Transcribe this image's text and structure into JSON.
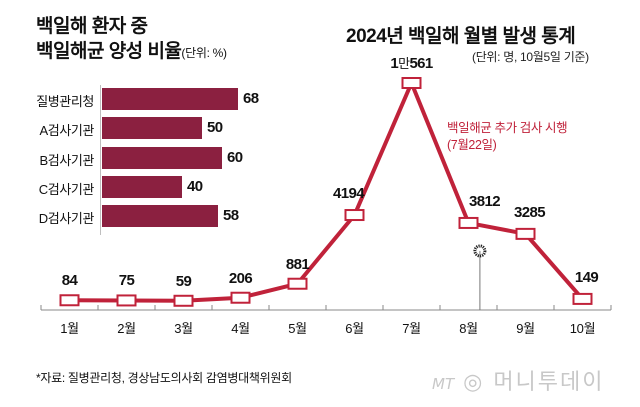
{
  "left_chart": {
    "title_line1": "백일해 환자 중",
    "title_line2": "백일해균 양성 비율",
    "unit": "(단위: %)"
  },
  "right_chart": {
    "title": "2024년 백일해 월별 발생 통계",
    "subtitle": "(단위: 명, 10월5일 기준)",
    "annotation_line1": "백일해균 추가 검사 시행",
    "annotation_line2": "(7월22일)"
  },
  "chart_data": [
    {
      "type": "bar",
      "orientation": "horizontal",
      "title": "백일해 환자 중 백일해균 양성 비율",
      "unit": "%",
      "categories": [
        "질병관리청",
        "A검사기관",
        "B검사기관",
        "C검사기관",
        "D검사기관"
      ],
      "values": [
        68,
        50,
        60,
        40,
        58
      ],
      "value_labels": [
        "68",
        "50",
        "60",
        "40",
        "58"
      ],
      "xlim": [
        0,
        100
      ],
      "color": "#8b2040",
      "grid": false
    },
    {
      "type": "line",
      "title": "2024년 백일해 월별 발생 통계",
      "unit": "명",
      "categories": [
        "1월",
        "2월",
        "3월",
        "4월",
        "5월",
        "6월",
        "7월",
        "8월",
        "9월",
        "10월"
      ],
      "values": [
        84,
        75,
        59,
        206,
        881,
        4194,
        10561,
        3812,
        3285,
        149
      ],
      "value_labels": [
        {
          "main": "84"
        },
        {
          "main": "75"
        },
        {
          "main": "59"
        },
        {
          "main": "206"
        },
        {
          "main": "881"
        },
        {
          "main": "4194"
        },
        {
          "prefix": "1",
          "unit": "만",
          "main": "561"
        },
        {
          "main": "3812"
        },
        {
          "main": "3285"
        },
        {
          "main": "149"
        }
      ],
      "ylim": [
        0,
        11000
      ],
      "line_color": "#c0223a",
      "marker": "hollow-rectangle",
      "grid": false,
      "annotation": {
        "text": "백일해균 추가 검사 시행 (7월22일)",
        "x_month_position": 7.7
      }
    }
  ],
  "footer": {
    "source": "*자료: 질병관리청, 경상남도의사회 감염병대책위원회",
    "logo_mt": "MT",
    "logo_name": "머니투데이"
  }
}
